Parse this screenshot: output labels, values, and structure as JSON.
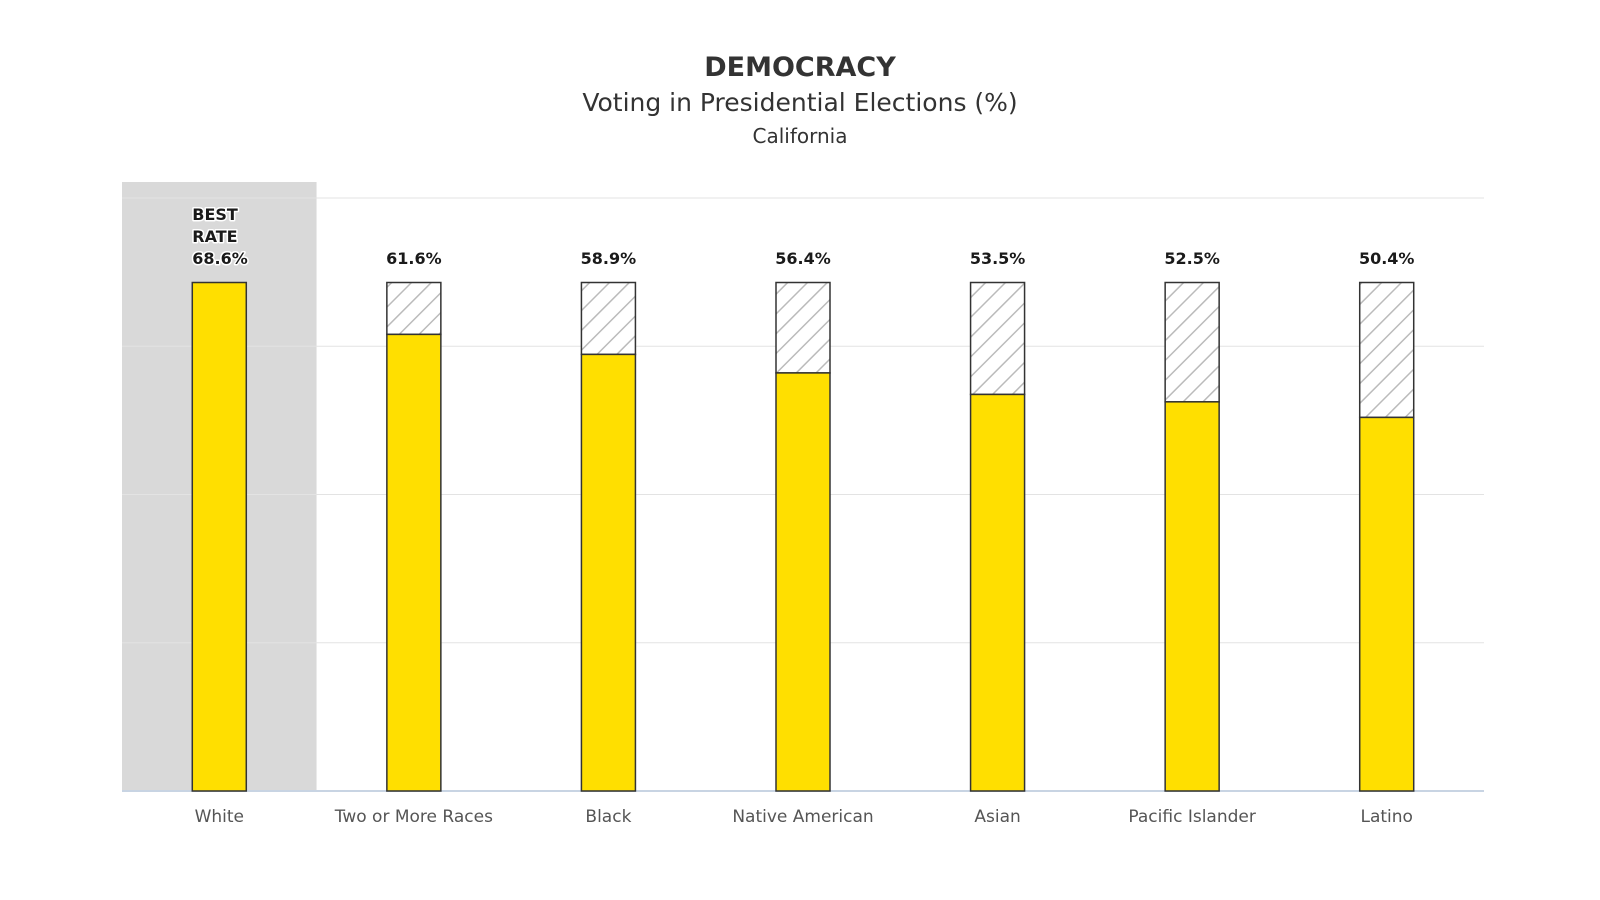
{
  "chart_data": {
    "type": "bar",
    "title": "DEMOCRACY",
    "subtitle": "Voting in Presidential Elections (%)",
    "region": "California",
    "categories": [
      "White",
      "Two or More Races",
      "Black",
      "Native American",
      "Asian",
      "Pacific Islander",
      "Latino"
    ],
    "values": [
      68.6,
      61.6,
      58.9,
      56.4,
      53.5,
      52.5,
      50.4
    ],
    "value_labels": [
      "68.6%",
      "61.6%",
      "58.9%",
      "56.4%",
      "53.5%",
      "52.5%",
      "50.4%"
    ],
    "best_rate_label": [
      "BEST",
      "RATE"
    ],
    "best_index": 0,
    "gap_to_best": "hatched",
    "ylim": [
      0,
      80
    ],
    "grid": true,
    "legend": "none",
    "xlabel": "",
    "ylabel": "",
    "colors": {
      "bar": "#FFDF00",
      "best_highlight": "#D9D9D9",
      "gap_hatch": "#BBBBBB",
      "grid": "#E3E3E3",
      "axis": "#C8D4E3"
    }
  }
}
